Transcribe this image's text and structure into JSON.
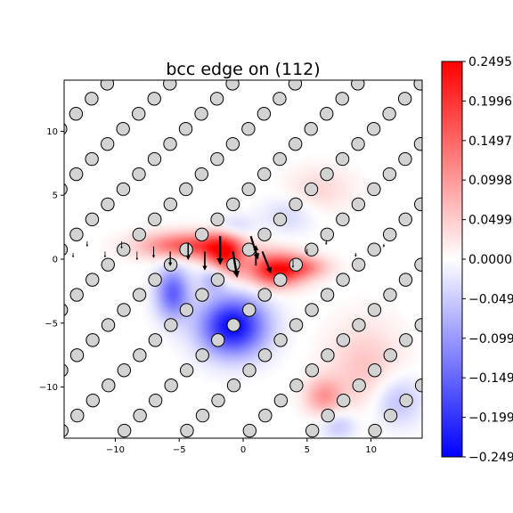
{
  "chart_data": {
    "type": "heatmap",
    "title": "bcc edge on (112)",
    "xlabel": "",
    "ylabel": "",
    "xlim": [
      -14,
      14
    ],
    "ylim": [
      -14,
      14
    ],
    "xticks": [
      -10,
      -5,
      0,
      5,
      10
    ],
    "yticks": [
      -10,
      -5,
      0,
      5,
      10
    ],
    "colormap": "bwr",
    "colorbar": {
      "vmin": -0.2495,
      "vmax": 0.2495,
      "ticks": [
        0.2495,
        0.1996,
        0.1497,
        0.0998,
        0.0499,
        0.0,
        -0.0499,
        -0.0998,
        -0.1497,
        -0.1996,
        -0.2495
      ],
      "tick_labels": [
        "0.2495",
        "0.1996",
        "0.1497",
        "0.0998",
        "0.0499",
        "0.0000",
        "−0.049",
        "−0.099",
        "−0.149",
        "−0.199",
        "−0.249"
      ]
    },
    "colors": {
      "positive": "#ff0000",
      "negative": "#0000ff",
      "zero": "#ffffff",
      "atom_fill": "#d3d3d3",
      "atom_edge": "#000000"
    },
    "lattice": {
      "a1": [
        4.9,
        0
      ],
      "a2": [
        1.22,
        1.18
      ],
      "origin": [
        0.45,
        0.75
      ]
    },
    "field_blobs": [
      {
        "x": -4.2,
        "y": 1.1,
        "amp": 0.18,
        "sx": 2.6,
        "sy": 0.7
      },
      {
        "x": -1.5,
        "y": 0.4,
        "amp": 0.23,
        "sx": 1.0,
        "sy": 1.3
      },
      {
        "x": 2.5,
        "y": -0.8,
        "amp": 0.24,
        "sx": 1.5,
        "sy": 0.9
      },
      {
        "x": 4.8,
        "y": -0.6,
        "amp": 0.1,
        "sx": 1.4,
        "sy": 0.6
      },
      {
        "x": 6.0,
        "y": 5.5,
        "amp": 0.04,
        "sx": 1.8,
        "sy": 1.2
      },
      {
        "x": 9.5,
        "y": -8.5,
        "amp": 0.06,
        "sx": 2.0,
        "sy": 2.4
      },
      {
        "x": 6.3,
        "y": -10.7,
        "amp": 0.1,
        "sx": 1.0,
        "sy": 1.0
      },
      {
        "x": -0.8,
        "y": -5.2,
        "amp": -0.25,
        "sx": 1.8,
        "sy": 1.6
      },
      {
        "x": -5.5,
        "y": -2.6,
        "amp": -0.16,
        "sx": 0.9,
        "sy": 1.4
      },
      {
        "x": -2.2,
        "y": -1.3,
        "amp": -0.12,
        "sx": 0.8,
        "sy": 0.8
      },
      {
        "x": -1.0,
        "y": 2.4,
        "amp": -0.08,
        "sx": 1.1,
        "sy": 0.7
      },
      {
        "x": 3.5,
        "y": 3.5,
        "amp": -0.04,
        "sx": 1.4,
        "sy": 1.0
      },
      {
        "x": 12.0,
        "y": -11.0,
        "amp": -0.07,
        "sx": 1.4,
        "sy": 1.4
      },
      {
        "x": 7.5,
        "y": -13.0,
        "amp": -0.06,
        "sx": 1.0,
        "sy": 0.8
      }
    ],
    "arrows": [
      {
        "x": -1.8,
        "y": 1.8,
        "dx": 0.0,
        "dy": -2.0
      },
      {
        "x": -0.8,
        "y": 0.6,
        "dx": 0.3,
        "dy": -1.8
      },
      {
        "x": 0.6,
        "y": 1.8,
        "dx": 0.5,
        "dy": -1.6
      },
      {
        "x": 1.5,
        "y": 0.6,
        "dx": 0.6,
        "dy": -1.5
      },
      {
        "x": 1.0,
        "y": -0.5,
        "dx": 0.0,
        "dy": 1.4
      },
      {
        "x": -3.0,
        "y": 0.6,
        "dx": 0.0,
        "dy": -1.3
      },
      {
        "x": -4.3,
        "y": 1.3,
        "dx": 0.0,
        "dy": -1.2
      },
      {
        "x": -5.7,
        "y": 0.6,
        "dx": 0.0,
        "dy": -1.0
      },
      {
        "x": -7.0,
        "y": 1.0,
        "dx": 0.0,
        "dy": -0.8
      },
      {
        "x": 3.9,
        "y": 0.0,
        "dx": 0.0,
        "dy": -0.6
      },
      {
        "x": -8.3,
        "y": 0.6,
        "dx": 0.0,
        "dy": -0.6
      },
      {
        "x": -9.5,
        "y": 1.4,
        "dx": 0.0,
        "dy": -0.5
      },
      {
        "x": -10.8,
        "y": 0.6,
        "dx": 0.0,
        "dy": -0.4
      },
      {
        "x": -12.2,
        "y": 1.4,
        "dx": 0.0,
        "dy": -0.35
      },
      {
        "x": 5.0,
        "y": 0.8,
        "dx": 0.0,
        "dy": -0.35
      },
      {
        "x": 6.5,
        "y": 1.5,
        "dx": 0.0,
        "dy": -0.3
      },
      {
        "x": -13.3,
        "y": 0.5,
        "dx": 0.0,
        "dy": -0.3
      },
      {
        "x": 8.8,
        "y": 0.5,
        "dx": 0.0,
        "dy": -0.25
      },
      {
        "x": 11.0,
        "y": 1.2,
        "dx": 0.0,
        "dy": -0.2
      }
    ]
  }
}
